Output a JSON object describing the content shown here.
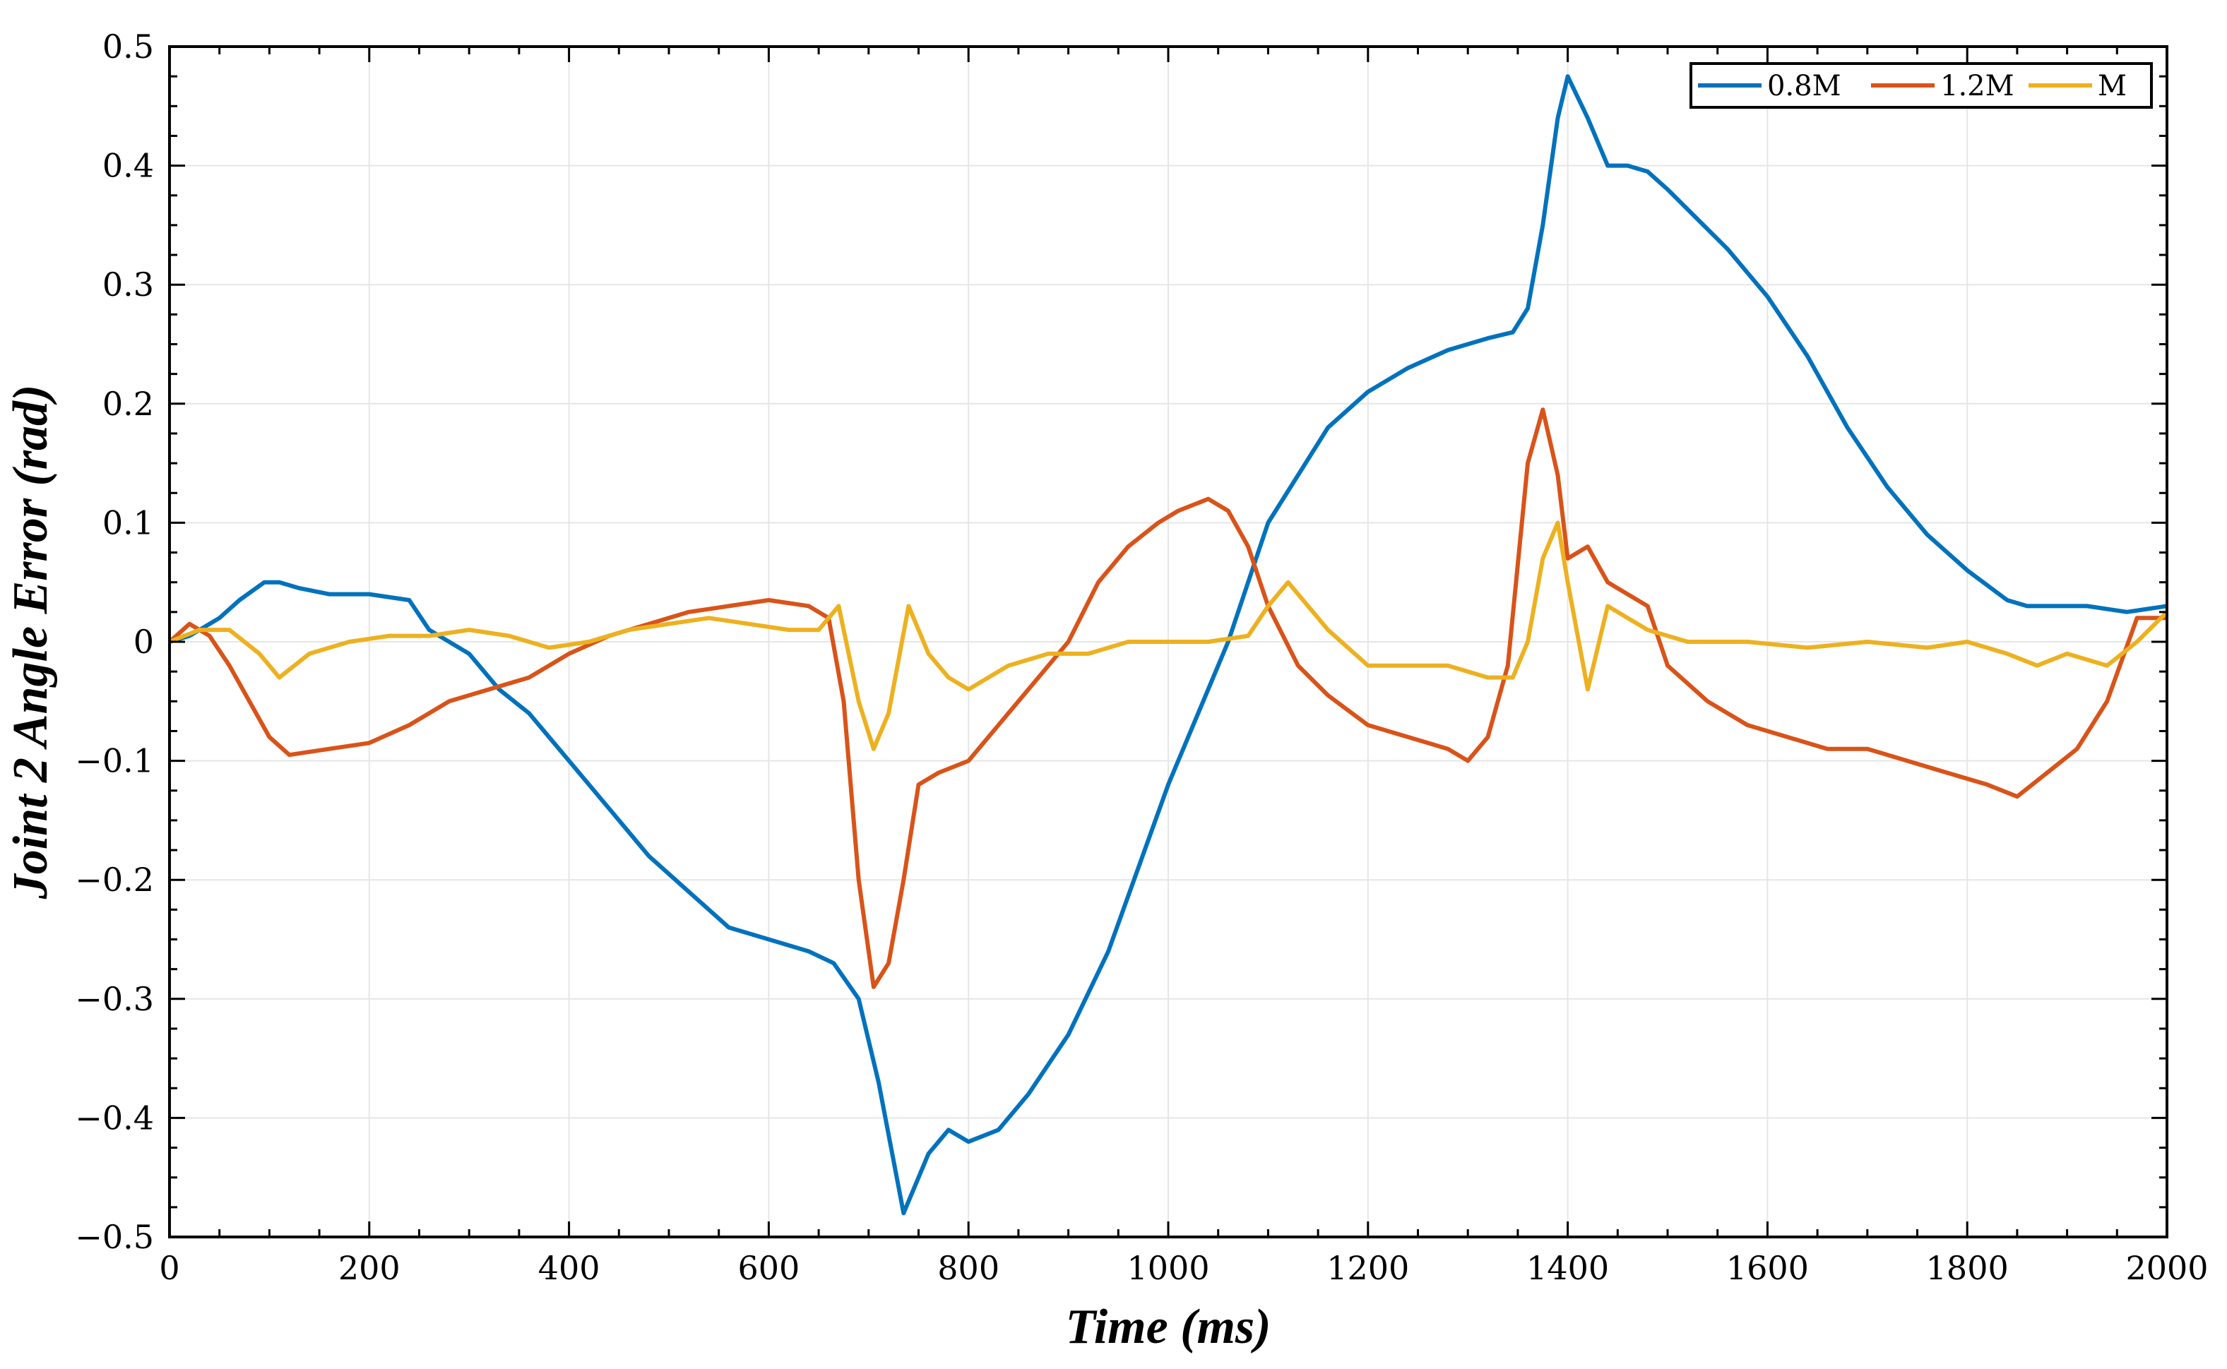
{
  "chart_data": {
    "type": "line",
    "title": "",
    "xlabel": "Time (ms)",
    "ylabel": "Joint 2 Angle Error (rad)",
    "xlim": [
      0,
      2000
    ],
    "ylim": [
      -0.5,
      0.5
    ],
    "grid": true,
    "legend_position": "top-right",
    "x_ticks": [
      0,
      200,
      400,
      600,
      800,
      1000,
      1200,
      1400,
      1600,
      1800,
      2000
    ],
    "x_tick_labels": [
      "0",
      "200",
      "400",
      "600",
      "800",
      "1000",
      "1200",
      "1400",
      "1600",
      "1800",
      "2000"
    ],
    "y_ticks": [
      -0.5,
      -0.4,
      -0.3,
      -0.2,
      -0.1,
      0,
      0.1,
      0.2,
      0.3,
      0.4,
      0.5
    ],
    "y_tick_labels": [
      "−0.5",
      "−0.4",
      "−0.3",
      "−0.2",
      "−0.1",
      "0",
      "0.1",
      "0.2",
      "0.3",
      "0.4",
      "0.5"
    ],
    "series": [
      {
        "name": "0.8M",
        "color": "#0072BD",
        "x": [
          0,
          20,
          50,
          70,
          95,
          110,
          130,
          160,
          200,
          240,
          260,
          300,
          330,
          360,
          400,
          440,
          480,
          520,
          560,
          600,
          640,
          665,
          690,
          710,
          735,
          760,
          780,
          800,
          830,
          860,
          900,
          940,
          970,
          1000,
          1030,
          1060,
          1080,
          1100,
          1130,
          1160,
          1200,
          1240,
          1280,
          1320,
          1345,
          1360,
          1375,
          1390,
          1400,
          1420,
          1440,
          1460,
          1480,
          1500,
          1530,
          1560,
          1600,
          1640,
          1680,
          1720,
          1760,
          1800,
          1840,
          1860,
          1880,
          1920,
          1960,
          2000
        ],
        "y": [
          0,
          0.005,
          0.02,
          0.035,
          0.05,
          0.05,
          0.045,
          0.04,
          0.04,
          0.035,
          0.01,
          -0.01,
          -0.04,
          -0.06,
          -0.1,
          -0.14,
          -0.18,
          -0.21,
          -0.24,
          -0.25,
          -0.26,
          -0.27,
          -0.3,
          -0.37,
          -0.48,
          -0.43,
          -0.41,
          -0.42,
          -0.41,
          -0.38,
          -0.33,
          -0.26,
          -0.19,
          -0.12,
          -0.06,
          0,
          0.05,
          0.1,
          0.14,
          0.18,
          0.21,
          0.23,
          0.245,
          0.255,
          0.26,
          0.28,
          0.35,
          0.44,
          0.475,
          0.44,
          0.4,
          0.4,
          0.395,
          0.38,
          0.355,
          0.33,
          0.29,
          0.24,
          0.18,
          0.13,
          0.09,
          0.06,
          0.035,
          0.03,
          0.03,
          0.03,
          0.025,
          0.03
        ]
      },
      {
        "name": "1.2M",
        "color": "#D95319",
        "x": [
          0,
          20,
          40,
          60,
          80,
          100,
          120,
          160,
          200,
          240,
          280,
          320,
          360,
          400,
          440,
          480,
          520,
          560,
          600,
          640,
          660,
          675,
          690,
          705,
          720,
          735,
          750,
          770,
          800,
          830,
          860,
          900,
          930,
          960,
          990,
          1010,
          1040,
          1060,
          1080,
          1100,
          1130,
          1160,
          1200,
          1240,
          1280,
          1300,
          1320,
          1340,
          1360,
          1375,
          1390,
          1400,
          1420,
          1440,
          1460,
          1480,
          1500,
          1540,
          1580,
          1620,
          1660,
          1700,
          1740,
          1780,
          1820,
          1850,
          1880,
          1910,
          1940,
          1970,
          2000
        ],
        "y": [
          0,
          0.015,
          0.005,
          -0.02,
          -0.05,
          -0.08,
          -0.095,
          -0.09,
          -0.085,
          -0.07,
          -0.05,
          -0.04,
          -0.03,
          -0.01,
          0.005,
          0.015,
          0.025,
          0.03,
          0.035,
          0.03,
          0.02,
          -0.05,
          -0.2,
          -0.29,
          -0.27,
          -0.2,
          -0.12,
          -0.11,
          -0.1,
          -0.07,
          -0.04,
          0,
          0.05,
          0.08,
          0.1,
          0.11,
          0.12,
          0.11,
          0.08,
          0.03,
          -0.02,
          -0.045,
          -0.07,
          -0.08,
          -0.09,
          -0.1,
          -0.08,
          -0.02,
          0.15,
          0.195,
          0.14,
          0.07,
          0.08,
          0.05,
          0.04,
          0.03,
          -0.02,
          -0.05,
          -0.07,
          -0.08,
          -0.09,
          -0.09,
          -0.1,
          -0.11,
          -0.12,
          -0.13,
          -0.11,
          -0.09,
          -0.05,
          0.02,
          0.02
        ]
      },
      {
        "name": "M",
        "color": "#EDB120",
        "x": [
          0,
          30,
          60,
          90,
          110,
          140,
          180,
          220,
          260,
          300,
          340,
          380,
          420,
          460,
          500,
          540,
          580,
          620,
          650,
          670,
          690,
          705,
          720,
          740,
          760,
          780,
          800,
          840,
          880,
          920,
          960,
          1000,
          1040,
          1080,
          1100,
          1120,
          1160,
          1200,
          1240,
          1280,
          1320,
          1345,
          1360,
          1375,
          1390,
          1400,
          1420,
          1440,
          1460,
          1480,
          1520,
          1580,
          1640,
          1700,
          1760,
          1800,
          1840,
          1870,
          1900,
          1940,
          1970,
          2000
        ],
        "y": [
          0,
          0.01,
          0.01,
          -0.01,
          -0.03,
          -0.01,
          0,
          0.005,
          0.005,
          0.01,
          0.005,
          -0.005,
          0,
          0.01,
          0.015,
          0.02,
          0.015,
          0.01,
          0.01,
          0.03,
          -0.05,
          -0.09,
          -0.06,
          0.03,
          -0.01,
          -0.03,
          -0.04,
          -0.02,
          -0.01,
          -0.01,
          0,
          0,
          0,
          0.005,
          0.03,
          0.05,
          0.01,
          -0.02,
          -0.02,
          -0.02,
          -0.03,
          -0.03,
          0,
          0.07,
          0.1,
          0.05,
          -0.04,
          0.03,
          0.02,
          0.01,
          0,
          0,
          -0.005,
          0,
          -0.005,
          0,
          -0.01,
          -0.02,
          -0.01,
          -0.02,
          0,
          0.025
        ]
      }
    ]
  }
}
